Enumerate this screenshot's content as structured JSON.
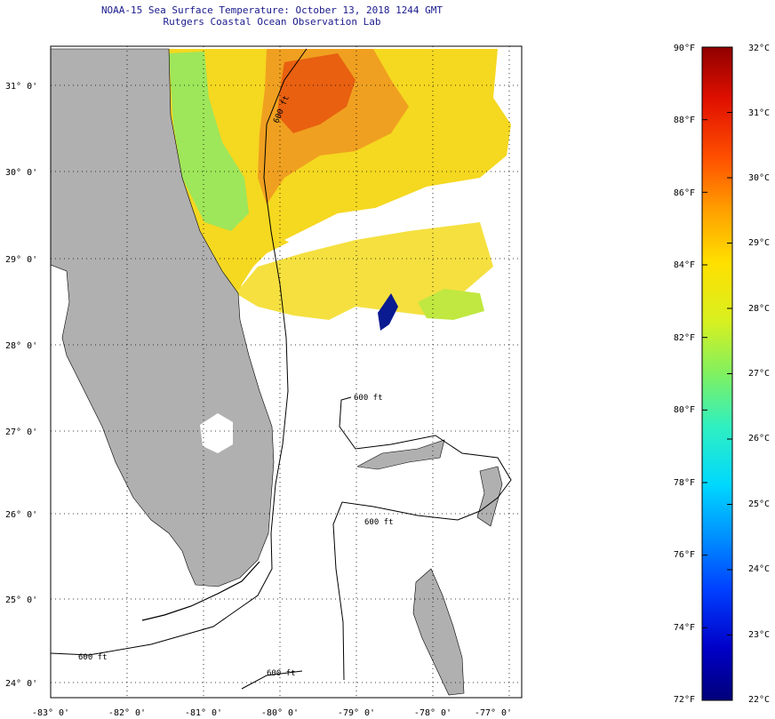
{
  "title": {
    "line1": "NOAA-15 Sea Surface Temperature:  October 13, 2018 1244 GMT",
    "line2": "Rutgers Coastal Ocean Observation Lab"
  },
  "map": {
    "lon_labels": [
      "-83° 0'",
      "-82° 0'",
      "-81° 0'",
      "-80° 0'",
      "-79° 0'",
      "-78° 0'",
      "-77° 0'"
    ],
    "lat_labels": [
      "31° 0'",
      "30° 0'",
      "29° 0'",
      "28° 0'",
      "27° 0'",
      "26° 0'",
      "25° 0'",
      "24° 0'"
    ],
    "isobath_label": "600 ft",
    "colors": {
      "land": "#b0b0b0",
      "water": "#ffffff",
      "grid": "#000000"
    }
  },
  "colorbar": {
    "fahrenheit_labels": [
      "90°F",
      "88°F",
      "86°F",
      "84°F",
      "82°F",
      "80°F",
      "78°F",
      "76°F",
      "74°F",
      "72°F"
    ],
    "celsius_labels": [
      "32°C",
      "31°C",
      "30°C",
      "29°C",
      "28°C",
      "27°C",
      "26°C",
      "25°C",
      "24°C",
      "23°C",
      "22°C"
    ],
    "range_f": [
      72,
      90
    ],
    "range_c": [
      22,
      32
    ],
    "gradient": [
      "#00007a",
      "#0000c8",
      "#0040ff",
      "#0090ff",
      "#00d8ff",
      "#30f0c0",
      "#80f060",
      "#d8f020",
      "#ffe000",
      "#ffa000",
      "#ff5000",
      "#e01000",
      "#900000"
    ]
  }
}
